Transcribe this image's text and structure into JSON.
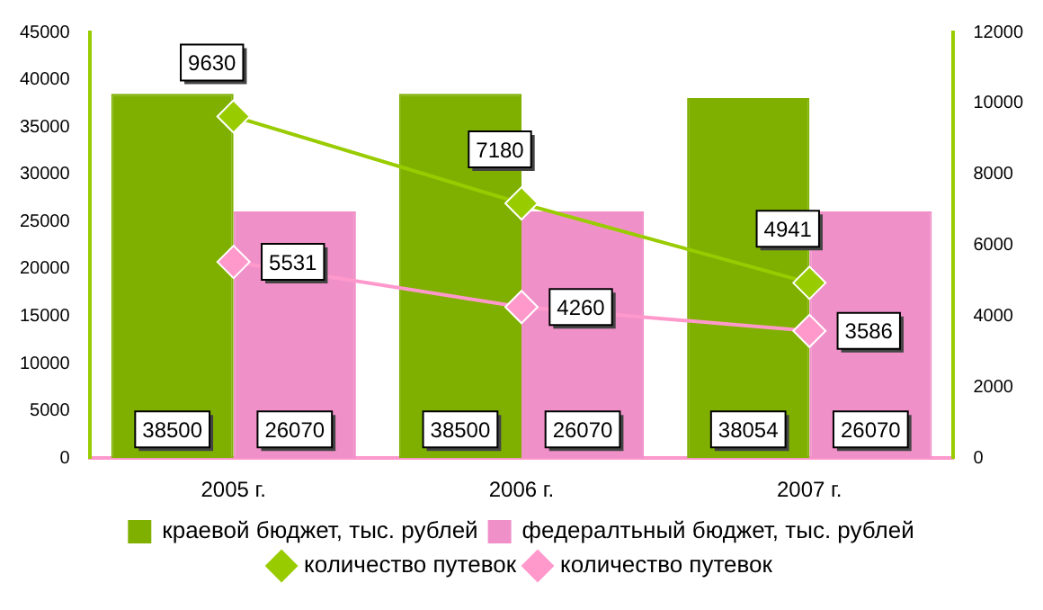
{
  "chart_data": {
    "type": "bar",
    "categories": [
      "2005 г.",
      "2006 г.",
      "2007 г."
    ],
    "series": [
      {
        "name": "краевой бюджет, тыс. рублей",
        "color": "#7fb000",
        "values": [
          38500,
          38500,
          38054
        ]
      },
      {
        "name": "федералтьный бюджет, тыс. рублей",
        "color": "#f090c8",
        "values": [
          26070,
          26070,
          26070
        ]
      },
      {
        "name": "количество путевок",
        "type": "line",
        "axis": "y2",
        "color": "#99cc00",
        "values": [
          9630,
          7180,
          4941
        ]
      },
      {
        "name": "количество путевок",
        "type": "line",
        "axis": "y2",
        "color": "#ff99cc",
        "values": [
          5531,
          4260,
          3586
        ]
      }
    ],
    "ylim": [
      0,
      45000
    ],
    "yticks": [
      0,
      5000,
      10000,
      15000,
      20000,
      25000,
      30000,
      35000,
      40000,
      45000
    ],
    "y2lim": [
      0,
      12000
    ],
    "y2ticks": [
      0,
      2000,
      4000,
      6000,
      8000,
      10000,
      12000
    ],
    "grid": false,
    "legend": "bottom",
    "marker": "diamond",
    "data_labels": true
  }
}
